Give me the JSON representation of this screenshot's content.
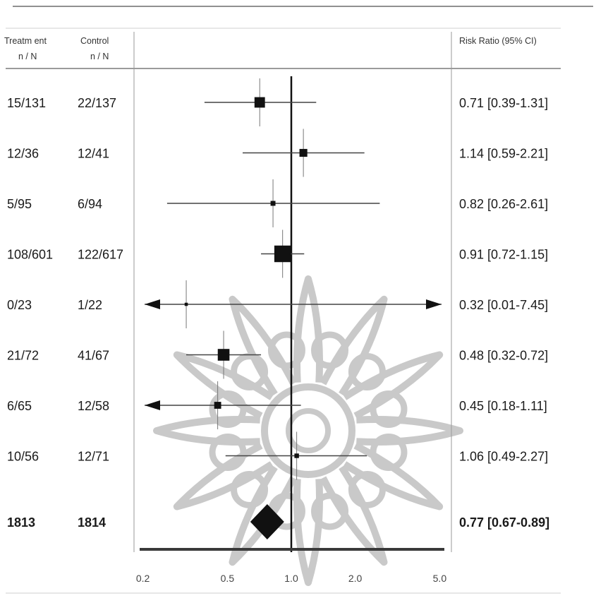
{
  "headers": {
    "treatment": "Treatm ent",
    "treatment_sub": "n / N",
    "control": "Control",
    "control_sub": "n / N",
    "rr": "Risk Ratio (95% CI)"
  },
  "colors": {
    "ink": "#111111",
    "axis": "#3a3a3a",
    "rule": "#8a8a8a",
    "watermark": "#c9c9c9"
  },
  "chart_data": {
    "type": "forest",
    "scale": "log",
    "xlim": [
      0.15,
      7.0
    ],
    "reference_line": 1.0,
    "x_ticks": [
      0.2,
      0.5,
      1.0,
      2.0,
      5.0
    ],
    "x_tick_labels": [
      "0.2",
      "0.5",
      "1.0",
      "2.0",
      "5.0"
    ],
    "rows": [
      {
        "treatment": "15/131",
        "control": "22/137",
        "rr": 0.71,
        "lo": 0.39,
        "hi": 1.31,
        "label": "0.71 [0.39-1.31]",
        "weight": 3.2
      },
      {
        "treatment": "12/36",
        "control": "12/41",
        "rr": 1.14,
        "lo": 0.59,
        "hi": 2.21,
        "label": "1.14 [0.59-2.21]",
        "weight": 1.8
      },
      {
        "treatment": "5/95",
        "control": "6/94",
        "rr": 0.82,
        "lo": 0.26,
        "hi": 2.61,
        "label": "0.82 [0.26-2.61]",
        "weight": 0.7
      },
      {
        "treatment": "108/601",
        "control": "122/617",
        "rr": 0.91,
        "lo": 0.72,
        "hi": 1.15,
        "label": "0.91 [0.72-1.15]",
        "weight": 8.0
      },
      {
        "treatment": "0/23",
        "control": "1/22",
        "rr": 0.32,
        "lo": 0.01,
        "hi": 7.45,
        "label": "0.32 [0.01-7.45]",
        "weight": 0.3
      },
      {
        "treatment": "21/72",
        "control": "41/67",
        "rr": 0.48,
        "lo": 0.32,
        "hi": 0.72,
        "label": "0.48 [0.32-0.72]",
        "weight": 4.0
      },
      {
        "treatment": "6/65",
        "control": "12/58",
        "rr": 0.45,
        "lo": 0.18,
        "hi": 1.11,
        "label": "0.45 [0.18-1.11]",
        "weight": 1.4
      },
      {
        "treatment": "10/56",
        "control": "12/71",
        "rr": 1.06,
        "lo": 0.49,
        "hi": 2.27,
        "label": "1.06 [0.49-2.27]",
        "weight": 0.6
      }
    ],
    "total": {
      "treatment": "1813",
      "control": "1814",
      "rr": 0.77,
      "lo": 0.67,
      "hi": 0.89,
      "label": "0.77 [0.67-0.89]"
    }
  }
}
